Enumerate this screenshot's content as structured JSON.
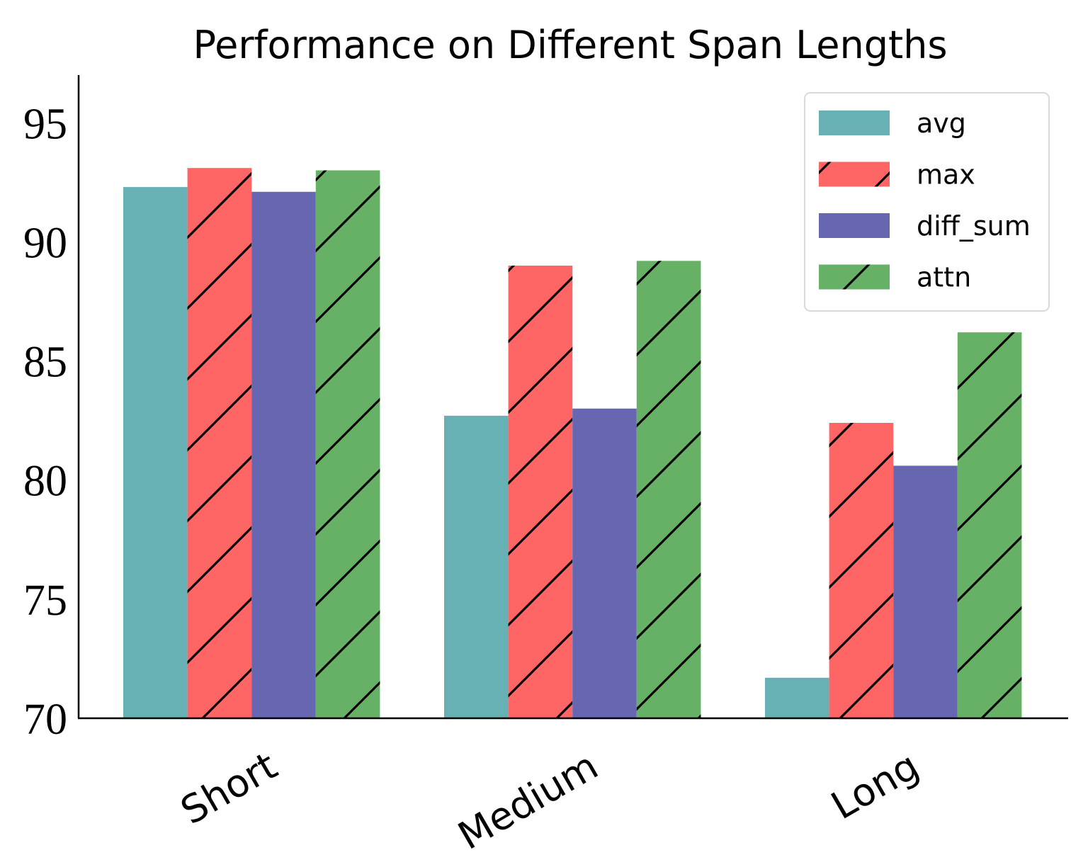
{
  "chart_data": {
    "type": "bar",
    "title": "Performance on Different Span Lengths",
    "xlabel": "",
    "ylabel": "",
    "categories": [
      "Short",
      "Medium",
      "Long"
    ],
    "series": [
      {
        "name": "avg",
        "values": [
          92.3,
          82.7,
          71.7
        ],
        "color": "#67b0b3",
        "hatch": false
      },
      {
        "name": "max",
        "values": [
          93.1,
          89.0,
          82.4
        ],
        "color": "#fe6666",
        "hatch": true
      },
      {
        "name": "diff_sum",
        "values": [
          92.1,
          83.0,
          80.6
        ],
        "color": "#6766b0",
        "hatch": false
      },
      {
        "name": "attn",
        "values": [
          93.0,
          89.2,
          86.2
        ],
        "color": "#66b166",
        "hatch": true
      }
    ],
    "ylim": [
      70,
      97
    ],
    "yticks": [
      "70",
      "75",
      "80",
      "85",
      "90",
      "95"
    ],
    "grid": false,
    "legend": "top-right"
  }
}
